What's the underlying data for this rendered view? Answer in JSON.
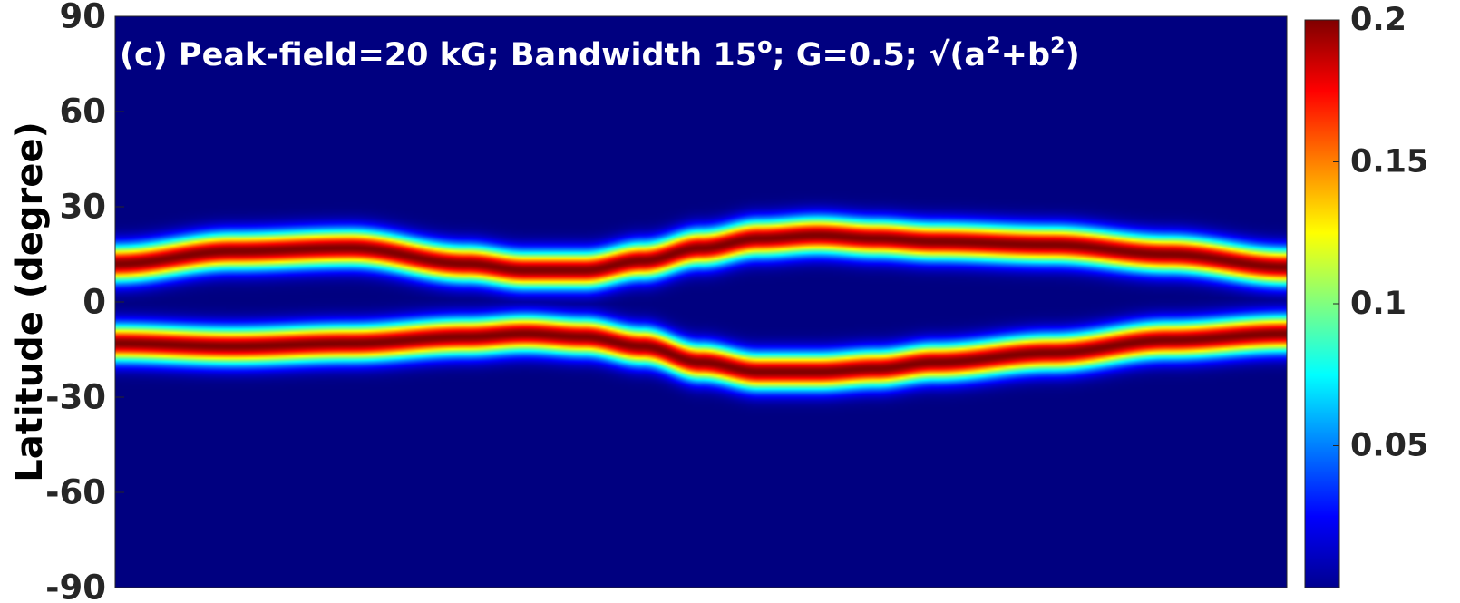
{
  "chart_data": {
    "type": "heatmap",
    "title_parts": {
      "main": "(c) Peak-field=20 kG; Bandwidth 15",
      "degree_sup": "o",
      "mid": "; G=0.5; √(a",
      "sup_a": "2",
      "plus_b": "+b",
      "sup_b": "2",
      "end": ")"
    },
    "ylabel": "Latitude (degree)",
    "xlabel": "",
    "ylim": [
      -90,
      90
    ],
    "yticks": [
      90,
      60,
      30,
      0,
      -30,
      -60,
      -90
    ],
    "ytick_labels": [
      "90",
      "60",
      "30",
      "0",
      "-30",
      "-60",
      "-90"
    ],
    "colormap": "jet",
    "colorbar": {
      "range": [
        0,
        0.2
      ],
      "ticks": [
        0.05,
        0.1,
        0.15,
        0.2
      ],
      "tick_labels": [
        "0.05",
        "0.1",
        "0.15",
        "0.2"
      ]
    },
    "bands": [
      {
        "hemisphere": "north",
        "x_fraction": [
          0.0,
          0.1,
          0.2,
          0.3,
          0.35,
          0.4,
          0.45,
          0.5,
          0.55,
          0.6,
          0.65,
          0.7,
          0.8,
          0.9,
          1.0
        ],
        "center_latitude": [
          12,
          16,
          17,
          12,
          10,
          10,
          13,
          17,
          20,
          21,
          20,
          19,
          18,
          15,
          11
        ],
        "peak_value": 0.2
      },
      {
        "hemisphere": "south",
        "x_fraction": [
          0.0,
          0.1,
          0.2,
          0.3,
          0.35,
          0.4,
          0.45,
          0.5,
          0.55,
          0.6,
          0.65,
          0.7,
          0.8,
          0.9,
          1.0
        ],
        "center_latitude": [
          -13,
          -14,
          -13,
          -11,
          -10,
          -11,
          -14,
          -19,
          -22,
          -22,
          -21,
          -19,
          -16,
          -12,
          -10
        ],
        "peak_value": 0.2
      }
    ],
    "band_halfwidth_latitude": 5.5,
    "background_value": 0.0
  },
  "colors": {
    "background_fill": "#00008f",
    "axis_text": "#262626",
    "title_text": "#ffffff"
  }
}
